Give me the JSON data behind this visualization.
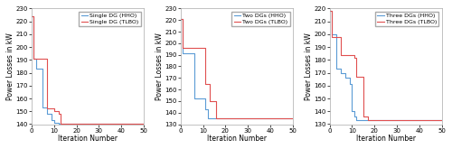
{
  "plots": [
    {
      "ylabel": "Power Losses in kW",
      "xlabel": "Iteration Number",
      "ylim": [
        140,
        230
      ],
      "xlim": [
        0,
        50
      ],
      "yticks": [
        140,
        150,
        160,
        170,
        180,
        190,
        200,
        210,
        220,
        230
      ],
      "xticks": [
        0,
        10,
        20,
        30,
        40,
        50
      ],
      "legend": [
        "Single DG (HHO)",
        "Single DG (TLBO)"
      ],
      "hho_x": [
        0,
        1,
        2,
        3,
        4,
        5,
        6,
        7,
        8,
        9,
        10,
        11,
        12,
        50
      ],
      "hho_y": [
        224,
        191,
        183,
        183,
        183,
        153,
        153,
        148,
        148,
        143,
        141,
        141,
        140,
        140
      ],
      "tlbo_x": [
        0,
        1,
        2,
        3,
        4,
        5,
        6,
        7,
        8,
        9,
        10,
        11,
        12,
        13,
        50
      ],
      "tlbo_y": [
        224,
        191,
        191,
        191,
        191,
        191,
        191,
        152,
        152,
        152,
        150,
        150,
        148,
        140,
        140
      ]
    },
    {
      "ylabel": "Power Losses in kW",
      "xlabel": "Iteration Number",
      "ylim": [
        130,
        230
      ],
      "xlim": [
        0,
        50
      ],
      "yticks": [
        130,
        140,
        150,
        160,
        170,
        180,
        190,
        200,
        210,
        220,
        230
      ],
      "xticks": [
        0,
        10,
        20,
        30,
        40,
        50
      ],
      "legend": [
        "Two DGs (HHO)",
        "Two DGs (TLBO)"
      ],
      "hho_x": [
        0,
        1,
        2,
        3,
        4,
        5,
        6,
        7,
        8,
        9,
        10,
        11,
        12,
        13,
        50
      ],
      "hho_y": [
        221,
        191,
        191,
        191,
        191,
        191,
        152,
        152,
        152,
        152,
        152,
        143,
        135,
        135,
        135
      ],
      "tlbo_x": [
        0,
        1,
        2,
        3,
        4,
        5,
        6,
        7,
        8,
        9,
        10,
        11,
        12,
        13,
        14,
        15,
        16,
        17,
        50
      ],
      "tlbo_y": [
        221,
        196,
        196,
        196,
        196,
        196,
        196,
        196,
        196,
        196,
        196,
        165,
        165,
        150,
        150,
        150,
        135,
        135,
        135
      ]
    },
    {
      "ylabel": "Power Losses in kW",
      "xlabel": "Iteration Number",
      "ylim": [
        130,
        220
      ],
      "xlim": [
        0,
        50
      ],
      "yticks": [
        130,
        140,
        150,
        160,
        170,
        180,
        190,
        200,
        210,
        220
      ],
      "xticks": [
        0,
        10,
        20,
        30,
        40,
        50
      ],
      "legend": [
        "Three DGs (HHO)",
        "Three DGs (TLBO)"
      ],
      "hho_x": [
        0,
        1,
        2,
        3,
        4,
        5,
        6,
        7,
        8,
        9,
        10,
        11,
        12,
        13,
        14,
        50
      ],
      "hho_y": [
        218,
        200,
        200,
        173,
        173,
        170,
        170,
        166,
        166,
        161,
        140,
        136,
        133,
        133,
        133,
        133
      ],
      "tlbo_x": [
        0,
        1,
        2,
        3,
        4,
        5,
        6,
        7,
        8,
        9,
        10,
        11,
        12,
        13,
        14,
        15,
        16,
        17,
        18,
        50
      ],
      "tlbo_y": [
        218,
        198,
        198,
        198,
        198,
        184,
        184,
        184,
        184,
        184,
        184,
        182,
        167,
        167,
        167,
        136,
        136,
        133,
        133,
        133
      ]
    }
  ],
  "hho_color": "#5b9bd5",
  "tlbo_color": "#e05050",
  "bg_color": "#ffffff",
  "fig_bg": "#ffffff",
  "linewidth": 0.8,
  "fontsize_label": 5.5,
  "fontsize_tick": 5.0,
  "fontsize_legend": 4.5
}
